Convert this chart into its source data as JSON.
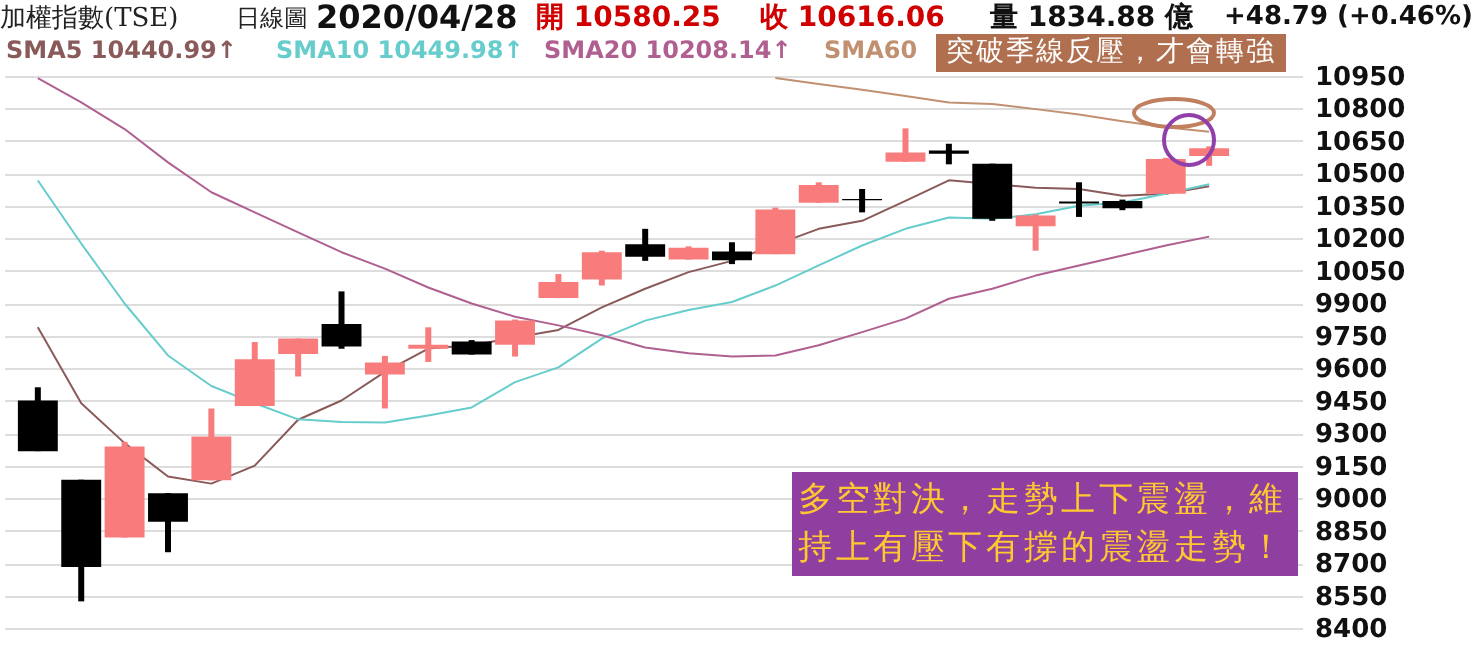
{
  "chart_data": {
    "type": "candlestick",
    "title": "加權指數(TSE)",
    "annotations": [
      "日線圖",
      "2020/04/28",
      "開 10580.25",
      "收 10616.06",
      "量 1834.88 億",
      "+48.79 (+0.46%)",
      "突破季線反壓，才會轉強",
      "多空對決，走勢上下震盪，維持上有壓下有撐的震盪走勢！"
    ],
    "categories": [
      null,
      null,
      null,
      null,
      null,
      null,
      null,
      null,
      null,
      null,
      null,
      null,
      null,
      null,
      null,
      null,
      null,
      null,
      null,
      null,
      null,
      null,
      null,
      null,
      null,
      null,
      null,
      null
    ],
    "ohlc": [
      [
        9451,
        9512,
        9217,
        9217
      ],
      [
        9085,
        9085,
        8523,
        8682
      ],
      [
        8818,
        9260,
        8818,
        9239
      ],
      [
        9023,
        9023,
        8750,
        8891
      ],
      [
        9082,
        9414,
        9082,
        9285
      ],
      [
        9426,
        9721,
        9426,
        9641
      ],
      [
        9666,
        9737,
        9562,
        9737
      ],
      [
        9804,
        9955,
        9690,
        9700
      ],
      [
        9571,
        9657,
        9414,
        9626
      ],
      [
        9690,
        9789,
        9629,
        9709
      ],
      [
        9724,
        9730,
        9663,
        9663
      ],
      [
        9709,
        9825,
        9654,
        9820
      ],
      [
        9924,
        10035,
        9924,
        9998
      ],
      [
        10010,
        10143,
        9982,
        10136
      ],
      [
        10173,
        10244,
        10096,
        10115
      ],
      [
        10102,
        10163,
        10102,
        10157
      ],
      [
        10139,
        10182,
        10081,
        10099
      ],
      [
        10127,
        10342,
        10127,
        10333
      ],
      [
        10364,
        10459,
        10364,
        10447
      ],
      [
        10382,
        10428,
        10320,
        10376
      ],
      [
        10554,
        10708,
        10554,
        10597
      ],
      [
        10606,
        10637,
        10542,
        10591
      ],
      [
        10545,
        10545,
        10281,
        10290
      ],
      [
        10256,
        10310,
        10143,
        10305
      ],
      [
        10370,
        10459,
        10299,
        10361
      ],
      [
        10373,
        10379,
        10330,
        10339
      ],
      [
        10406,
        10572,
        10406,
        10567
      ],
      [
        10580.25,
        10625,
        10535,
        10616.06
      ]
    ],
    "colors": [
      "#000000",
      "#000000",
      "#f87c7c",
      "#000000",
      "#f87c7c",
      "#f87c7c",
      "#f87c7c",
      "#000000",
      "#f87c7c",
      "#f87c7c",
      "#000000",
      "#f87c7c",
      "#f87c7c",
      "#f87c7c",
      "#000000",
      "#f87c7c",
      "#000000",
      "#f87c7c",
      "#f87c7c",
      "#000000",
      "#f87c7c",
      "#000000",
      "#000000",
      "#f87c7c",
      "#000000",
      "#000000",
      "#f87c7c",
      "#f87c7c"
    ],
    "series": [
      {
        "name": "SMA5 10440.99↑",
        "type": "line",
        "color": "#8a5a5a",
        "values": [
          9789,
          9438,
          9254,
          9100,
          9067,
          9150,
          9362,
          9451,
          9583,
          9691,
          9706,
          null,
          9777,
          9881,
          9967,
          10044,
          10096,
          null,
          10244,
          10281,
          10373,
          10468,
          null,
          10434,
          10428,
          10397,
          10406,
          10441
        ]
      },
      {
        "name": "SMA10 10449.98↑",
        "type": "line",
        "color": "#66cccc",
        "values": [
          10467,
          10176,
          9899,
          9659,
          9518,
          9438,
          9364,
          9352,
          9349,
          9382,
          9419,
          9536,
          9604,
          9737,
          9820,
          9869,
          9906,
          9982,
          10075,
          10167,
          10244,
          10296,
          10290,
          10311,
          10351,
          10366,
          10406,
          10450
        ]
      },
      {
        "name": "SMA20 10208.14↑",
        "type": "line",
        "color": "#b06090",
        "values": [
          10940,
          10828,
          10705,
          10551,
          10413,
          10320,
          10228,
          10136,
          10060,
          9973,
          9899,
          9838,
          9798,
          9752,
          9696,
          9669,
          9654,
          9659,
          9706,
          9767,
          9829,
          9921,
          9967,
          10028,
          10075,
          10121,
          10167,
          10208
        ]
      },
      {
        "name": "SMA60",
        "type": "line",
        "color": "#c09070",
        "values": [
          null,
          null,
          null,
          null,
          null,
          null,
          null,
          null,
          null,
          null,
          null,
          null,
          null,
          null,
          null,
          null,
          null,
          10941,
          10913,
          10886,
          10858,
          10828,
          10821,
          10797,
          10772,
          10741,
          10713,
          10693
        ]
      }
    ],
    "ylim": [
      8400,
      10950
    ],
    "yticks": [
      8400,
      8550,
      8700,
      8850,
      9000,
      9150,
      9300,
      9450,
      9600,
      9750,
      9900,
      10050,
      10200,
      10350,
      10500,
      10650,
      10800,
      10950
    ],
    "grid": "y",
    "legend": "top left"
  }
}
